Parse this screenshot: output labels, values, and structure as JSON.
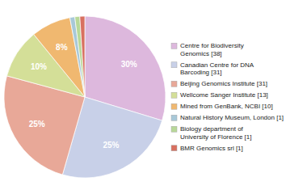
{
  "chart_data": {
    "type": "pie",
    "categories": [
      "Centre for Biodiversity\nGenomics [38]",
      "Canadian Centre for DNA\nBarcoding [31]",
      "Beijing Genomics Institute [31]",
      "Wellcome Sanger Institute [13]",
      "Mined from GenBank, NCBI [10]",
      "Natural History Museum, London [1]",
      "Biology department of\nUniversity of Florence [1]",
      "BMR Genomics srl [1]"
    ],
    "values": [
      30,
      25,
      25,
      10,
      8,
      1,
      1,
      1
    ],
    "value_labels": [
      "30%",
      "25%",
      "25%",
      "10%",
      "8%",
      null,
      null,
      null
    ],
    "colors": [
      "#ddb8dd",
      "#c8d0e8",
      "#e8a898",
      "#d4df98",
      "#f0b870",
      "#a8c8d8",
      "#b8d898",
      "#d87060"
    ],
    "data_labels": true,
    "legend": "right"
  }
}
